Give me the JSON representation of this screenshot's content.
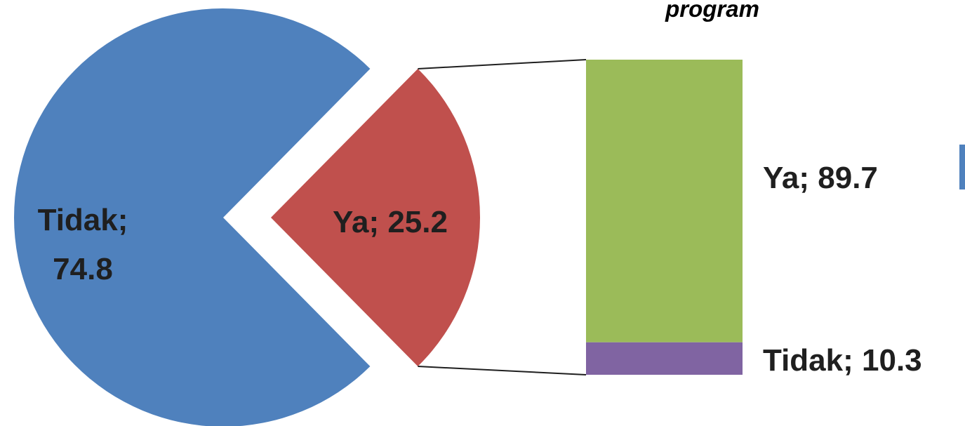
{
  "chart_data": {
    "type": "bar-of-pie",
    "title_fragment": "program",
    "pie": {
      "slices": [
        {
          "category": "Tidak",
          "value": 74.8,
          "label": "Tidak;",
          "label_value": "74.8",
          "color": "#4f81bd"
        },
        {
          "category": "Ya",
          "value": 25.2,
          "label": "Ya; 25.2",
          "color": "#c0504d",
          "exploded": true
        }
      ]
    },
    "breakdown_bar": {
      "of_category": "Ya",
      "segments": [
        {
          "category": "Ya",
          "value": 89.7,
          "label": "Ya; 89.7",
          "color": "#9bbb59"
        },
        {
          "category": "Tidak",
          "value": 10.3,
          "label": "Tidak; 10.3",
          "color": "#8064a2"
        }
      ]
    },
    "legend_marker_color": "#4f81bd"
  }
}
